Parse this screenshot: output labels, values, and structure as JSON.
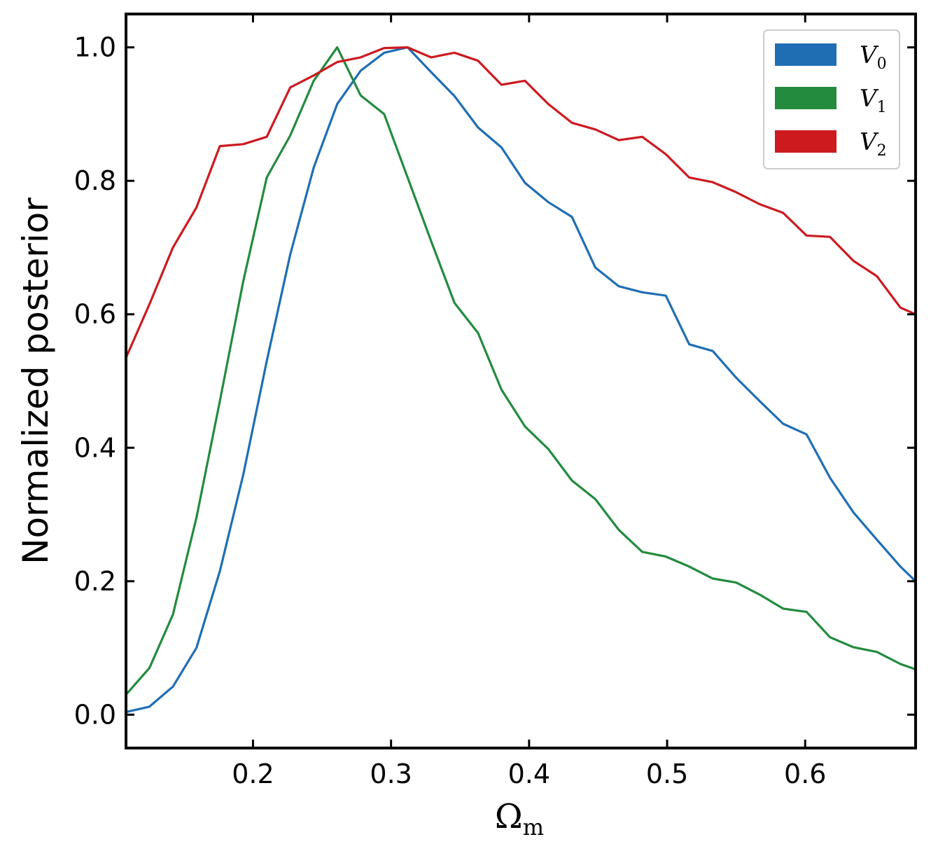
{
  "chart_data": {
    "type": "line",
    "xlabel": "Ω",
    "xlabel_sub": "m",
    "ylabel": "Normalized posterior",
    "xlim": [
      0.108,
      0.68
    ],
    "ylim": [
      -0.05,
      1.05
    ],
    "xticks": [
      0.2,
      0.3,
      0.4,
      0.5,
      0.6
    ],
    "xtick_labels": [
      "0.2",
      "0.3",
      "0.4",
      "0.5",
      "0.6"
    ],
    "yticks": [
      0.0,
      0.2,
      0.4,
      0.6,
      0.8,
      1.0
    ],
    "ytick_labels": [
      "0.0",
      "0.2",
      "0.4",
      "0.6",
      "0.8",
      "1.0"
    ],
    "grid": false,
    "legend_position": "top-right",
    "x": [
      0.108,
      0.125,
      0.142,
      0.159,
      0.176,
      0.193,
      0.21,
      0.227,
      0.244,
      0.261,
      0.278,
      0.295,
      0.312,
      0.329,
      0.346,
      0.363,
      0.38,
      0.397,
      0.414,
      0.431,
      0.448,
      0.465,
      0.482,
      0.499,
      0.516,
      0.533,
      0.55,
      0.567,
      0.584,
      0.601,
      0.618,
      0.635,
      0.652,
      0.669,
      0.68
    ],
    "series": [
      {
        "name": "V",
        "name_sub": "0",
        "color": "#1f6eb4",
        "values": [
          0.004,
          0.012,
          0.042,
          0.1,
          0.215,
          0.36,
          0.53,
          0.69,
          0.82,
          0.915,
          0.965,
          0.992,
          1.0,
          0.963,
          0.927,
          0.88,
          0.85,
          0.797,
          0.768,
          0.746,
          0.67,
          0.642,
          0.633,
          0.628,
          0.555,
          0.545,
          0.505,
          0.47,
          0.436,
          0.42,
          0.355,
          0.303,
          0.262,
          0.222,
          0.2
        ]
      },
      {
        "name": "V",
        "name_sub": "1",
        "color": "#238b3e",
        "values": [
          0.03,
          0.07,
          0.15,
          0.295,
          0.47,
          0.65,
          0.805,
          0.868,
          0.95,
          1.0,
          0.928,
          0.9,
          0.805,
          0.71,
          0.617,
          0.572,
          0.487,
          0.432,
          0.398,
          0.351,
          0.323,
          0.277,
          0.244,
          0.237,
          0.222,
          0.204,
          0.198,
          0.18,
          0.159,
          0.154,
          0.116,
          0.101,
          0.094,
          0.076,
          0.068
        ]
      },
      {
        "name": "V",
        "name_sub": "2",
        "color": "#cc1a1f",
        "values": [
          0.535,
          0.615,
          0.7,
          0.76,
          0.852,
          0.855,
          0.866,
          0.94,
          0.958,
          0.978,
          0.985,
          0.999,
          1.0,
          0.985,
          0.992,
          0.98,
          0.944,
          0.95,
          0.915,
          0.887,
          0.877,
          0.861,
          0.866,
          0.84,
          0.805,
          0.798,
          0.783,
          0.765,
          0.752,
          0.718,
          0.716,
          0.68,
          0.657,
          0.61,
          0.6
        ]
      }
    ]
  }
}
